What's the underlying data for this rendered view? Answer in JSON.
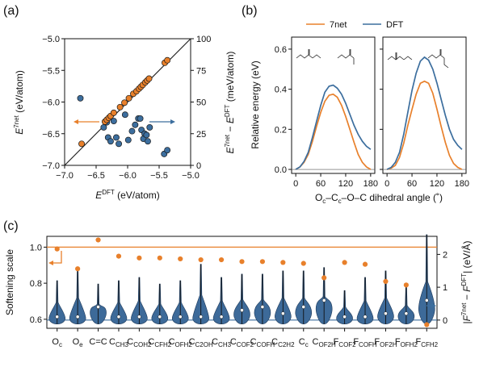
{
  "colors": {
    "orange": "#E8802B",
    "blue": "#3C6E9E",
    "violin": "#3D6A99",
    "violin_edge": "#1f3a5a",
    "diag": "#222222"
  },
  "panel_labels": {
    "a": "(a)",
    "b": "(b)",
    "c": "(c)"
  },
  "chart_data": [
    {
      "panel": "a",
      "type": "scatter",
      "xlabel": {
        "base": "E",
        "sup": "DFT",
        "unit": " (eV/atom)"
      },
      "ylabel_left": {
        "base": "E",
        "sup": "7net",
        "unit": " (eV/atom)"
      },
      "ylabel_right": {
        "a": "E",
        "a_sup": "7net",
        "minus": " − ",
        "b": "E",
        "b_sup": "DFT",
        "unit": " (meV/atom)"
      },
      "xlim": [
        -7.0,
        -5.0
      ],
      "ylim": [
        -7.0,
        -5.0
      ],
      "y2lim": [
        0,
        100
      ],
      "xticks": [
        "−7.0",
        "−6.5",
        "−6.0",
        "−5.5",
        "−5.0"
      ],
      "yticks": [
        "−7.0",
        "−6.5",
        "−6.0",
        "−5.5",
        "−5.0"
      ],
      "y2ticks": [
        "0",
        "25",
        "50",
        "75",
        "100"
      ],
      "energy_points": [
        [
          -6.73,
          -6.66
        ],
        [
          -6.36,
          -6.31
        ],
        [
          -6.33,
          -6.28
        ],
        [
          -6.3,
          -6.25
        ],
        [
          -6.27,
          -6.22
        ],
        [
          -6.22,
          -6.17
        ],
        [
          -6.12,
          -6.08
        ],
        [
          -6.05,
          -6.01
        ],
        [
          -5.98,
          -5.94
        ],
        [
          -5.91,
          -5.87
        ],
        [
          -5.86,
          -5.83
        ],
        [
          -5.82,
          -5.79
        ],
        [
          -5.79,
          -5.76
        ],
        [
          -5.76,
          -5.73
        ],
        [
          -5.72,
          -5.69
        ],
        [
          -5.69,
          -5.66
        ],
        [
          -5.66,
          -5.63
        ],
        [
          -5.41,
          -5.38
        ],
        [
          -5.37,
          -5.34
        ]
      ],
      "error_points": [
        [
          -6.75,
          53
        ],
        [
          -6.38,
          30
        ],
        [
          -6.33,
          34
        ],
        [
          -6.31,
          22
        ],
        [
          -6.27,
          19
        ],
        [
          -6.22,
          35
        ],
        [
          -6.18,
          22
        ],
        [
          -6.14,
          17
        ],
        [
          -6.04,
          40
        ],
        [
          -5.99,
          20
        ],
        [
          -5.93,
          27
        ],
        [
          -5.88,
          32
        ],
        [
          -5.83,
          37
        ],
        [
          -5.8,
          37
        ],
        [
          -5.78,
          28
        ],
        [
          -5.75,
          21
        ],
        [
          -5.73,
          25
        ],
        [
          -5.7,
          24
        ],
        [
          -5.68,
          19
        ],
        [
          -5.65,
          30
        ],
        [
          -5.42,
          9
        ],
        [
          -5.37,
          12
        ]
      ],
      "arrows": {
        "left": "orange",
        "right": "blue"
      }
    },
    {
      "panel": "b",
      "type": "line",
      "xlabel": "Oₙ–Cₙ–O–C dihedral angle (˚)",
      "xlabel_parts": {
        "o": "O",
        "o_sub": "c",
        "d1": "–",
        "c": "C",
        "c_sub": "c",
        "rest": "–O–C dihedral angle (˚)"
      },
      "ylabel": "Relative energy (eV)",
      "xlim": [
        -10,
        190
      ],
      "ylim": [
        -0.02,
        0.66
      ],
      "xticks": [
        "0",
        "60",
        "120",
        "180"
      ],
      "yticks": [
        "0.0",
        "0.2",
        "0.4",
        "0.6"
      ],
      "legend": [
        "7net",
        "DFT"
      ],
      "subplots": [
        {
          "series": [
            {
              "name": "7net",
              "x": [
                0,
                10,
                20,
                30,
                40,
                50,
                60,
                70,
                80,
                90,
                100,
                110,
                120,
                130,
                140,
                150,
                160,
                170,
                180
              ],
              "y": [
                0.0,
                0.012,
                0.035,
                0.075,
                0.14,
                0.215,
                0.285,
                0.34,
                0.37,
                0.375,
                0.36,
                0.32,
                0.265,
                0.2,
                0.135,
                0.075,
                0.035,
                0.012,
                0.0
              ]
            },
            {
              "name": "DFT",
              "x": [
                0,
                10,
                20,
                30,
                40,
                50,
                60,
                70,
                80,
                90,
                100,
                110,
                120,
                130,
                140,
                150,
                160,
                170,
                180
              ],
              "y": [
                0.0,
                0.012,
                0.04,
                0.085,
                0.16,
                0.24,
                0.32,
                0.385,
                0.415,
                0.42,
                0.405,
                0.375,
                0.33,
                0.275,
                0.22,
                0.175,
                0.14,
                0.115,
                0.1
              ]
            }
          ]
        },
        {
          "series": [
            {
              "name": "7net",
              "x": [
                0,
                10,
                20,
                30,
                40,
                50,
                60,
                70,
                80,
                90,
                100,
                110,
                120,
                130,
                140,
                150,
                160,
                170,
                180
              ],
              "y": [
                0.0,
                0.006,
                0.02,
                0.06,
                0.13,
                0.22,
                0.3,
                0.375,
                0.43,
                0.44,
                0.43,
                0.38,
                0.3,
                0.215,
                0.135,
                0.07,
                0.03,
                0.01,
                0.0
              ]
            },
            {
              "name": "DFT",
              "x": [
                0,
                10,
                20,
                30,
                40,
                50,
                60,
                70,
                80,
                90,
                100,
                110,
                120,
                130,
                140,
                150,
                160,
                170,
                180
              ],
              "y": [
                0.0,
                0.01,
                0.035,
                0.085,
                0.175,
                0.285,
                0.395,
                0.48,
                0.54,
                0.56,
                0.545,
                0.5,
                0.43,
                0.35,
                0.27,
                0.2,
                0.15,
                0.12,
                0.1
              ]
            }
          ]
        }
      ]
    },
    {
      "panel": "c",
      "type": "violin",
      "ylabel": "Softening scale",
      "ylabel_right": {
        "a": "F",
        "a_sup": "7net",
        "minus": " − ",
        "b": "F",
        "b_sup": "DFT",
        "unit": " (eV/Å)"
      },
      "ylim": [
        0.55,
        1.06
      ],
      "y2lim": [
        -0.25,
        2.55
      ],
      "yticks": [
        "0.6",
        "0.8",
        "1.0"
      ],
      "y2ticks": [
        "0",
        "1",
        "2"
      ],
      "hlines": {
        "orange_y": 1.0,
        "blue_y2": 0
      },
      "categories": [
        {
          "b": "O",
          "s": "c"
        },
        {
          "b": "O",
          "s": "e"
        },
        {
          "b": "C=C",
          "s": ""
        },
        {
          "b": "C",
          "s": "CH3"
        },
        {
          "b": "C",
          "s": "COH2"
        },
        {
          "b": "C",
          "s": "CFH2"
        },
        {
          "b": "C",
          "s": "OFH2"
        },
        {
          "b": "C",
          "s": "C2OH"
        },
        {
          "b": "C",
          "s": "CH3"
        },
        {
          "b": "C",
          "s": "COF2"
        },
        {
          "b": "C",
          "s": "COFH"
        },
        {
          "b": "C",
          "s": "C2H2"
        },
        {
          "b": "C",
          "s": "c"
        },
        {
          "b": "C",
          "s": "OF2H"
        },
        {
          "b": "F",
          "s": "COF2"
        },
        {
          "b": "F",
          "s": "COFH"
        },
        {
          "b": "F",
          "s": "OF2H"
        },
        {
          "b": "F",
          "s": "OFH2"
        },
        {
          "b": "F",
          "s": "CFH2"
        }
      ],
      "softening_scale": [
        0.99,
        0.88,
        1.04,
        0.95,
        0.94,
        0.94,
        0.935,
        0.93,
        0.93,
        0.92,
        0.92,
        0.915,
        0.91,
        0.83,
        0.915,
        0.905,
        0.81,
        0.79,
        0.57
      ],
      "force_error_median": [
        0.1,
        0.1,
        0.4,
        0.1,
        0.1,
        0.1,
        0.1,
        0.1,
        0.1,
        0.3,
        0.4,
        0.2,
        0.4,
        0.6,
        0.1,
        0.1,
        0.2,
        0.2,
        0.6
      ],
      "force_error_max": [
        1.2,
        1.5,
        1.1,
        1.2,
        1.3,
        1.1,
        1.2,
        1.7,
        1.3,
        1.4,
        1.4,
        1.5,
        1.5,
        1.6,
        0.9,
        1.3,
        1.5,
        1.0,
        2.6
      ],
      "arrows": {
        "left": "orange",
        "right": "blue"
      }
    }
  ]
}
